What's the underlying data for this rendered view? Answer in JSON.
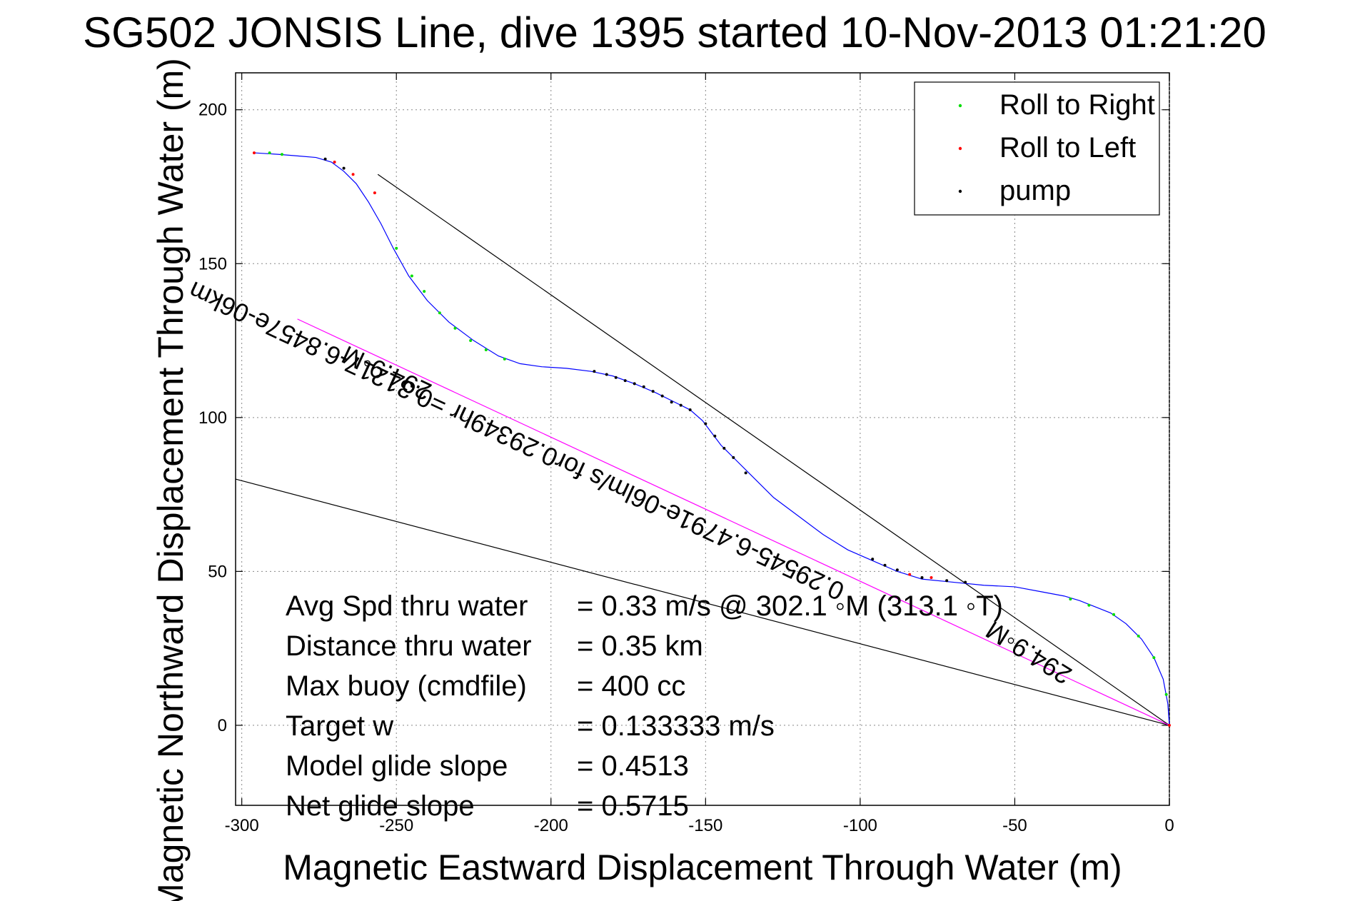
{
  "chart_data": {
    "type": "line",
    "title": "SG502 JONSIS Line, dive 1395 started 10-Nov-2013 01:21:20",
    "xlabel": "Magnetic Eastward Displacement Through Water (m)",
    "ylabel": "Magnetic Northward Displacement Through Water (m)",
    "xlim": [
      -302,
      0
    ],
    "ylim": [
      -26,
      212
    ],
    "xticks": [
      -300,
      -250,
      -200,
      -150,
      -100,
      -50,
      0
    ],
    "yticks": [
      0,
      50,
      100,
      150,
      200
    ],
    "x_tick_labels": [
      "-300",
      "-250",
      "-200",
      "-150",
      "-100",
      "-50",
      "0"
    ],
    "y_tick_labels": [
      "0",
      "50",
      "100",
      "150",
      "200"
    ],
    "grid": "dotted",
    "legend": {
      "placement": "top-right",
      "entries": [
        {
          "label": "Roll to Right",
          "color": "#00dd00"
        },
        {
          "label": "Roll to Left",
          "color": "#ff0000"
        },
        {
          "label": "pump",
          "color": "#000000"
        }
      ]
    },
    "track": {
      "name": "",
      "color": "#0000ff",
      "points": [
        [
          0,
          0
        ],
        [
          -0.5,
          7
        ],
        [
          -2,
          15
        ],
        [
          -5,
          22
        ],
        [
          -9,
          28
        ],
        [
          -14,
          33
        ],
        [
          -19,
          36.5
        ],
        [
          -24,
          38.5
        ],
        [
          -29,
          40.5
        ],
        [
          -34,
          42
        ],
        [
          -42,
          43.5
        ],
        [
          -50,
          45
        ],
        [
          -60,
          45.5
        ],
        [
          -70,
          46.5
        ],
        [
          -80,
          47.5
        ],
        [
          -88,
          50
        ],
        [
          -96,
          53.5
        ],
        [
          -104,
          57
        ],
        [
          -112,
          62
        ],
        [
          -120,
          68
        ],
        [
          -128,
          74
        ],
        [
          -136,
          82
        ],
        [
          -141,
          87
        ],
        [
          -145,
          91
        ],
        [
          -148,
          95
        ],
        [
          -151,
          99
        ],
        [
          -155,
          102.5
        ],
        [
          -160,
          105
        ],
        [
          -166,
          108
        ],
        [
          -173,
          111
        ],
        [
          -180,
          113.5
        ],
        [
          -187,
          115
        ],
        [
          -195,
          116
        ],
        [
          -203,
          116.5
        ],
        [
          -210,
          117.5
        ],
        [
          -217,
          120
        ],
        [
          -225,
          125
        ],
        [
          -233,
          131
        ],
        [
          -240,
          138
        ],
        [
          -246,
          146
        ],
        [
          -251,
          155
        ],
        [
          -255,
          163
        ],
        [
          -259,
          170
        ],
        [
          -263,
          176
        ],
        [
          -267,
          180
        ],
        [
          -271,
          183
        ],
        [
          -276,
          184.5
        ],
        [
          -282,
          185
        ],
        [
          -288,
          185.5
        ],
        [
          -296,
          186
        ]
      ]
    },
    "markers": [
      {
        "series": "Roll to Right",
        "points": [
          [
            -1,
            10
          ],
          [
            -5,
            22
          ],
          [
            -10,
            29
          ],
          [
            -18,
            36
          ],
          [
            -26,
            39
          ],
          [
            -32,
            41
          ],
          [
            -250,
            155
          ],
          [
            -245,
            146
          ],
          [
            -241,
            141
          ],
          [
            -236,
            134
          ],
          [
            -231,
            129
          ],
          [
            -226,
            125
          ],
          [
            -221,
            122
          ],
          [
            -215,
            119
          ],
          [
            -291,
            186
          ],
          [
            -287,
            185.5
          ]
        ]
      },
      {
        "series": "Roll to Left",
        "points": [
          [
            0,
            0
          ],
          [
            -296,
            186
          ],
          [
            -270,
            183
          ],
          [
            -264,
            179
          ],
          [
            -257,
            173
          ],
          [
            -84,
            49
          ],
          [
            -77,
            48
          ]
        ]
      },
      {
        "series": "pump",
        "points": [
          [
            -155,
            102.5
          ],
          [
            -158,
            104
          ],
          [
            -161,
            105
          ],
          [
            -164,
            107
          ],
          [
            -167,
            108.5
          ],
          [
            -170,
            110
          ],
          [
            -173,
            111
          ],
          [
            -176,
            112
          ],
          [
            -179,
            113
          ],
          [
            -182,
            114
          ],
          [
            -186,
            115
          ],
          [
            -150,
            98
          ],
          [
            -147,
            94
          ],
          [
            -144,
            90
          ],
          [
            -141,
            87
          ],
          [
            -137,
            82
          ],
          [
            -96,
            54
          ],
          [
            -92,
            52
          ],
          [
            -88,
            50.5
          ],
          [
            -80,
            48
          ],
          [
            -72,
            47
          ],
          [
            -66,
            46.5
          ],
          [
            -267,
            181
          ],
          [
            -273,
            184
          ]
        ]
      }
    ],
    "reference_lines": [
      {
        "color": "#000000",
        "points": [
          [
            0,
            0
          ],
          [
            -256,
            179
          ]
        ]
      },
      {
        "color": "#000000",
        "points": [
          [
            0,
            0
          ],
          [
            -302,
            80
          ]
        ]
      },
      {
        "color": "#ff00ff",
        "points": [
          [
            0,
            0
          ],
          [
            -282,
            132
          ]
        ]
      }
    ],
    "annotations": [
      {
        "text": "294.9◦M",
        "x": -252,
        "y": 117,
        "rotate": 205
      },
      {
        "text": "0.29545-6.4791e-06lm/s for0.29349hr =0.31217-6.8457e-06km",
        "x": -210,
        "y": 95,
        "rotate": 205
      },
      {
        "text": "294.9◦M",
        "x": -44,
        "y": 26,
        "rotate": 212
      }
    ],
    "stats": [
      {
        "label": "Avg Spd thru water",
        "value": "=  0.33 m/s @ 302.1 ◦M (313.1 ◦T)"
      },
      {
        "label": "Distance thru water",
        "value": "=  0.35 km"
      },
      {
        "label": "Max buoy (cmdfile)",
        "value": "= 400 cc"
      },
      {
        "label": "Target w",
        "value": "= 0.133333 m/s"
      },
      {
        "label": "Model glide slope",
        "value": "= 0.4513"
      },
      {
        "label": "Net glide slope",
        "value": "= 0.5715"
      }
    ]
  }
}
